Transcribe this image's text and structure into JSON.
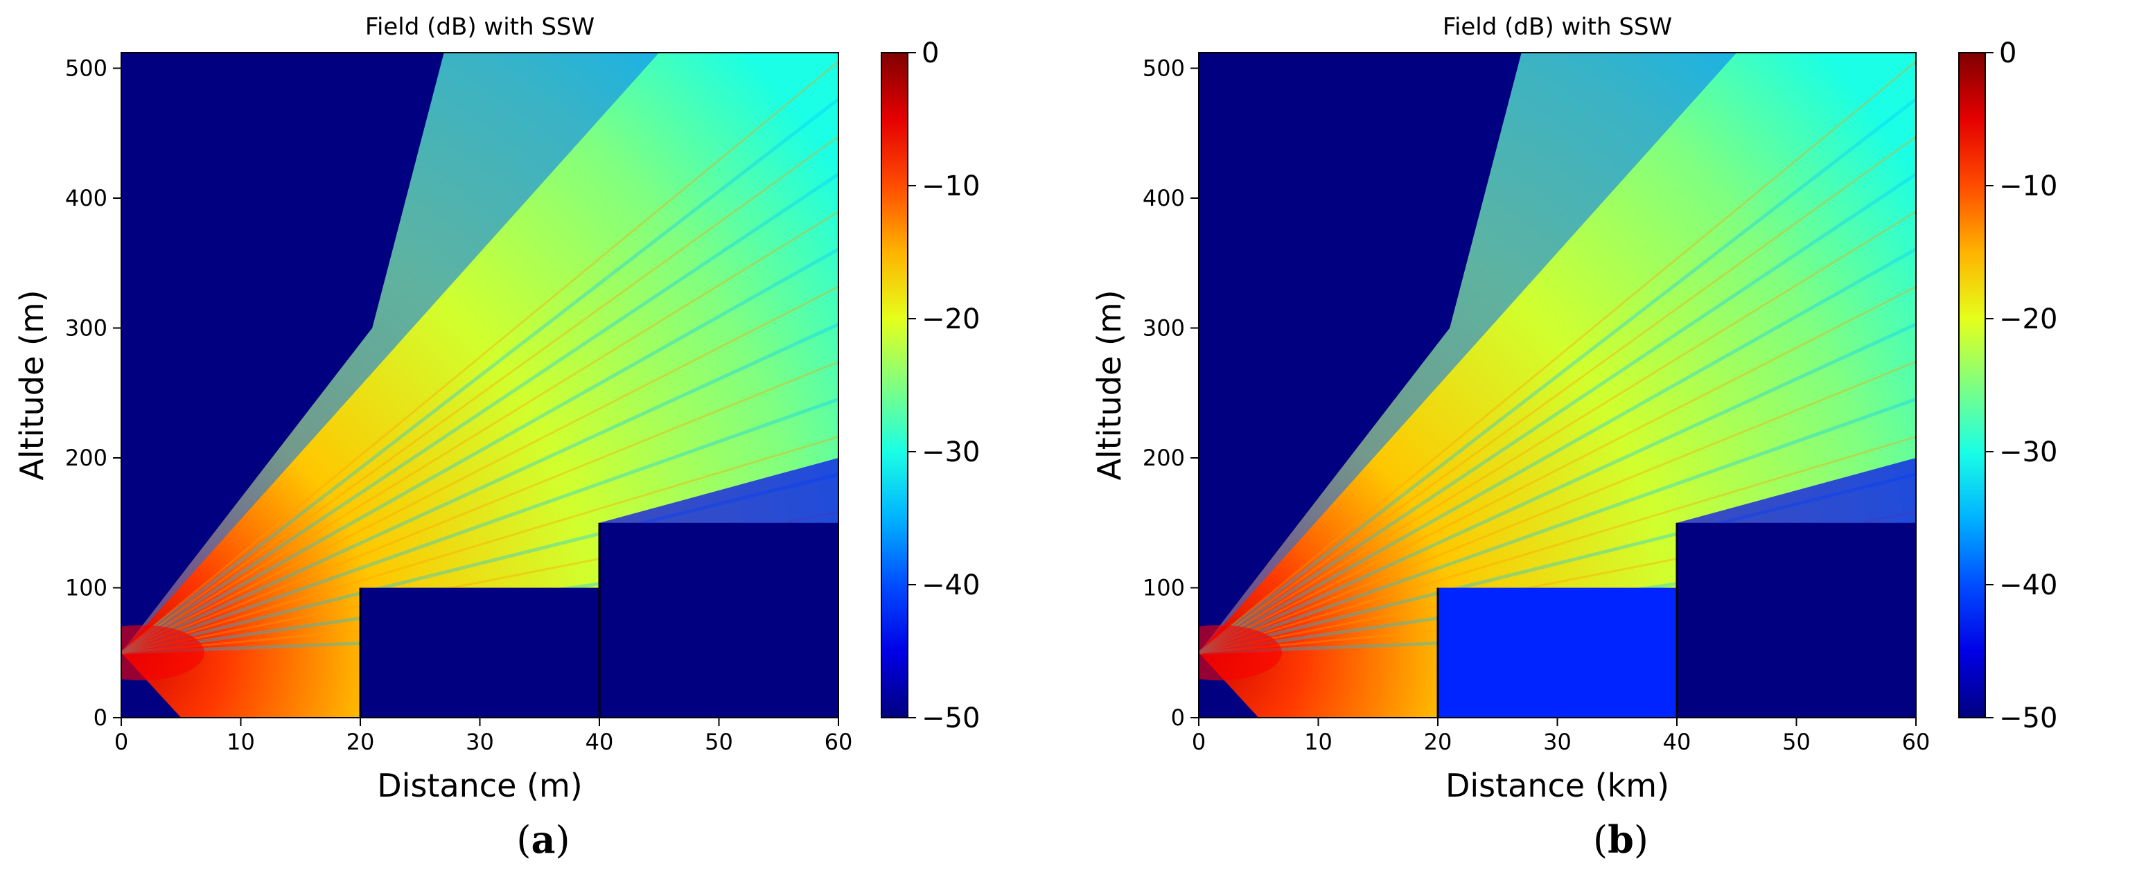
{
  "chart_data": [
    {
      "panel_label": "a",
      "type": "heatmap",
      "title": "Field (dB) with SSW",
      "xlabel": "Distance (m)",
      "ylabel": "Altitude (m)",
      "xlim": [
        0,
        60
      ],
      "ylim": [
        0,
        512
      ],
      "xticks": [
        "0",
        "10",
        "20",
        "30",
        "40",
        "50",
        "60"
      ],
      "yticks": [
        "0",
        "100",
        "200",
        "300",
        "400",
        "500"
      ],
      "colorbar": {
        "colormap": "jet",
        "range": [
          -50,
          0
        ],
        "ticks": [
          "0",
          "−10",
          "−20",
          "−30",
          "−40",
          "−50"
        ]
      },
      "source": {
        "x": 0,
        "y": 50
      },
      "obstacles": [
        {
          "x_start": 20,
          "x_end": 40,
          "height": 100
        },
        {
          "x_start": 40,
          "x_end": 60,
          "height": 150
        }
      ],
      "field_behind_obstacles_db": -50
    },
    {
      "panel_label": "b",
      "type": "heatmap",
      "title": "Field (dB) with SSW",
      "xlabel": "Distance (km)",
      "ylabel": "Altitude (m)",
      "xlim": [
        0,
        60
      ],
      "ylim": [
        0,
        512
      ],
      "xticks": [
        "0",
        "10",
        "20",
        "30",
        "40",
        "50",
        "60"
      ],
      "yticks": [
        "0",
        "100",
        "200",
        "300",
        "400",
        "500"
      ],
      "colorbar": {
        "colormap": "jet",
        "range": [
          -50,
          0
        ],
        "ticks": [
          "0",
          "−10",
          "−20",
          "−30",
          "−40",
          "−50"
        ]
      },
      "source": {
        "x": 0,
        "y": 50
      },
      "obstacles": [
        {
          "x_start": 20,
          "x_end": 40,
          "height": 100
        },
        {
          "x_start": 40,
          "x_end": 60,
          "height": 150
        }
      ],
      "field_behind_obstacles_db": -42
    }
  ],
  "captions": [
    {
      "open": "(",
      "letter": "a",
      "close": ")"
    },
    {
      "open": "(",
      "letter": "b",
      "close": ")"
    }
  ]
}
